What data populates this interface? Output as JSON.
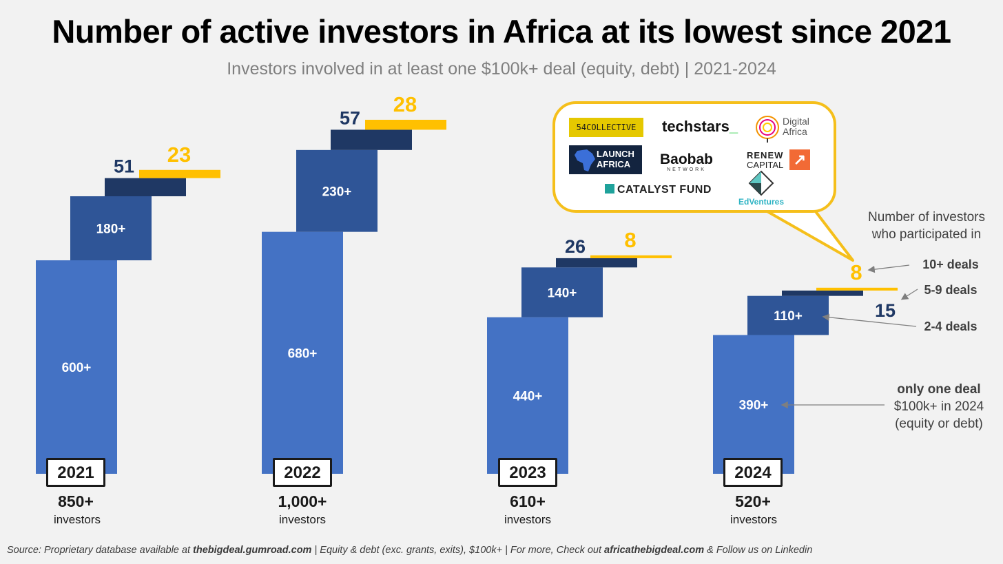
{
  "header": {
    "title": "Number of active investors in Africa at its lowest since 2021",
    "subtitle": "Investors involved in at least one $100k+ deal (equity, debt) | 2021-2024"
  },
  "colors": {
    "one_deal": "#4472c4",
    "two_to_four": "#2f5597",
    "five_to_nine": "#1f3864",
    "ten_plus": "#ffc000",
    "background": "#f2f2f2"
  },
  "chart_data": {
    "type": "bar",
    "title": "Number of active investors in Africa at its lowest since 2021",
    "subtitle": "Investors involved in at least one $100k+ deal (equity, debt) | 2021-2024",
    "categories": [
      "2021",
      "2022",
      "2023",
      "2024"
    ],
    "stacking": "staggered-waterfall",
    "series": [
      {
        "name": "only one deal",
        "labels": [
          "600+",
          "680+",
          "440+",
          "390+"
        ],
        "values": [
          600,
          680,
          440,
          390
        ]
      },
      {
        "name": "2-4 deals",
        "labels": [
          "180+",
          "230+",
          "140+",
          "110+"
        ],
        "values": [
          180,
          230,
          140,
          110
        ]
      },
      {
        "name": "5-9 deals",
        "labels": [
          "51",
          "57",
          "26",
          "15"
        ],
        "values": [
          51,
          57,
          26,
          15
        ]
      },
      {
        "name": "10+ deals",
        "labels": [
          "23",
          "28",
          "8",
          "8"
        ],
        "values": [
          23,
          28,
          8,
          8
        ]
      }
    ],
    "totals": [
      {
        "value": "850+",
        "unit": "investors"
      },
      {
        "value": "1,000+",
        "unit": "investors"
      },
      {
        "value": "610+",
        "unit": "investors"
      },
      {
        "value": "520+",
        "unit": "investors"
      }
    ],
    "xlabel": "",
    "ylabel": "",
    "grid": false,
    "legend": "annotations-right"
  },
  "annotations": {
    "header": "Number of investors who participated in",
    "header_line1": "Number of investors",
    "header_line2": "who participated in",
    "ten_plus": "10+ deals",
    "five_nine": "5-9 deals",
    "two_four": "2-4 deals",
    "one_line1": "only one deal",
    "one_line2": "$100k+ in 2024",
    "one_line3": "(equity or debt)"
  },
  "callout": {
    "logos": [
      {
        "name": "54 Collective",
        "text": "54COLLECTIVE"
      },
      {
        "name": "Techstars",
        "text": "techstars"
      },
      {
        "name": "Digital Africa",
        "text1": "Digital",
        "text2": "Africa"
      },
      {
        "name": "Launch Africa",
        "text1": "LAUNCH",
        "text2": "AFRICA"
      },
      {
        "name": "Baobab Network",
        "text1": "Baobab",
        "text2": "NETWORK"
      },
      {
        "name": "Renew Capital",
        "text1": "RENEW",
        "text2": "CAPITAL"
      },
      {
        "name": "Catalyst Fund",
        "text": "CATALYST FUND"
      },
      {
        "name": "EdVentures",
        "text": "EdVentures"
      }
    ]
  },
  "footer": {
    "prefix": "Source: Proprietary database available at ",
    "link1": "thebigdeal.gumroad.com",
    "middle": " | Equity & debt (exc. grants, exits), $100k+ | For more, Check out ",
    "link2": "africathebigdeal.com",
    "suffix": " & Follow us on Linkedin"
  }
}
